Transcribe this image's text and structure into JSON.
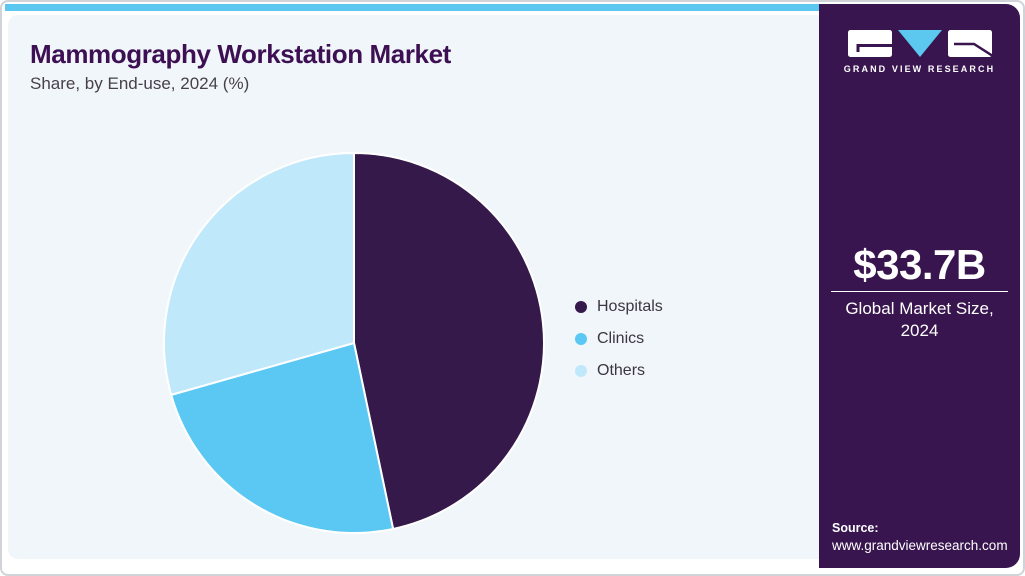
{
  "header": {
    "title": "Mammography Workstation Market",
    "subtitle": "Share, by End-use, 2024 (%)"
  },
  "chart_data": {
    "type": "pie",
    "title": "Mammography Workstation Market Share, by End-use, 2024 (%)",
    "categories": [
      "Hospitals",
      "Clinics",
      "Others"
    ],
    "values": [
      46.7,
      23.9,
      29.4
    ],
    "unit": "%",
    "colors": [
      "#34194a",
      "#5bc8f4",
      "#bfe8fa"
    ],
    "start_angle_deg": 0,
    "direction": "clockwise",
    "legend_position": "right",
    "slice_separator_color": "#ffffff",
    "data_labels": false
  },
  "legend": {
    "items": [
      {
        "label": "Hospitals",
        "color": "#34194a"
      },
      {
        "label": "Clinics",
        "color": "#5bc8f4"
      },
      {
        "label": "Others",
        "color": "#bfe8fa"
      }
    ]
  },
  "sidebar": {
    "logo": {
      "brand": "GRAND VIEW RESEARCH",
      "icon": "gvr-logo-icon",
      "triangle_color": "#5cc8f0"
    },
    "market_size": {
      "value": "$33.7B",
      "caption_line1": "Global Market Size,",
      "caption_line2": "2024"
    },
    "source": {
      "label": "Source:",
      "url": "www.grandviewresearch.com"
    }
  },
  "colors": {
    "accent_bar": "#5cc8f0",
    "panel_bg": "#f1f6fa",
    "sidebar_bg": "#38154e",
    "title_text": "#3d1053",
    "subtitle_text": "#46414b",
    "legend_text": "#3b3642"
  }
}
